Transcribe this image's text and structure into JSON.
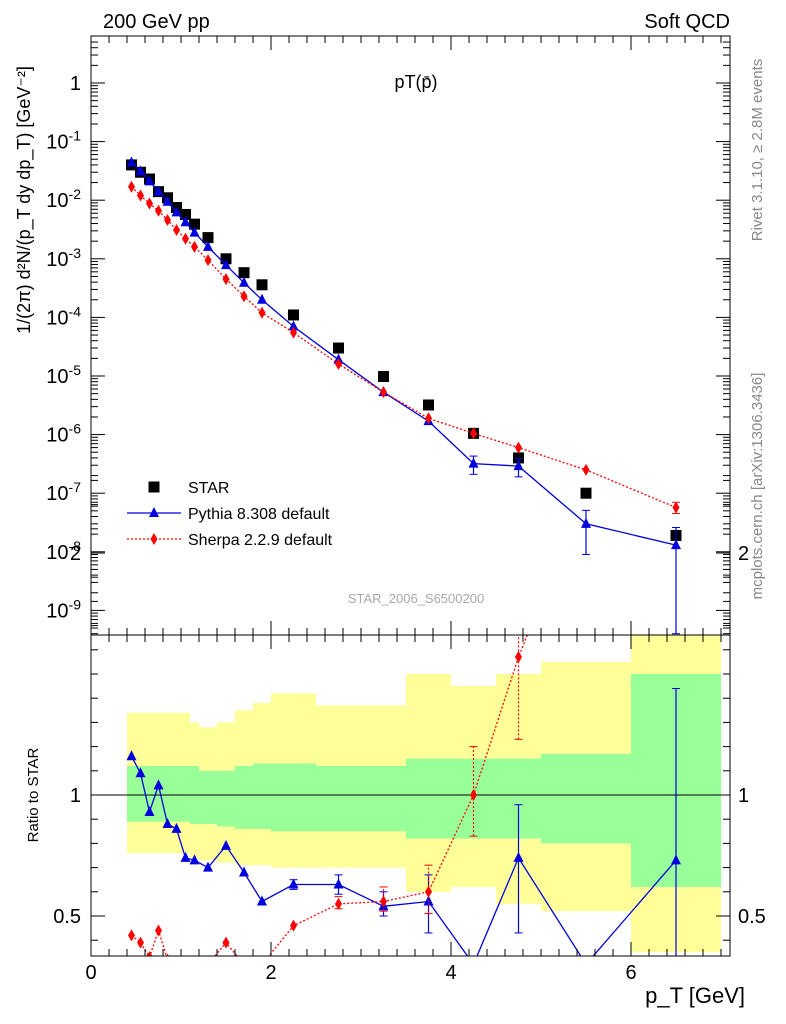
{
  "header": {
    "left": "200 GeV pp",
    "right": "Soft QCD"
  },
  "side_labels": {
    "rivet": "Rivet 3.1.10, ≥ 2.8M events",
    "mcplots": "mcplots.cern.ch [arXiv:1306.3436]"
  },
  "watermark": "STAR_2006_S6500200",
  "chart_data": [
    {
      "type": "scatter",
      "title": "pT(p̄)",
      "ylabel": "1/(2π) d²N/(p_T dy dp_T) [GeV⁻²]",
      "yscale": "log",
      "ylim": [
        4e-10,
        5
      ],
      "xlim": [
        0,
        7.1
      ],
      "yticks": [
        "10^-9",
        "10^-8",
        "10^-7",
        "10^-6",
        "10^-5",
        "10^-4",
        "10^-3",
        "10^-2",
        "10^-1",
        "1"
      ],
      "legend_position": "bottom-left",
      "grid": false,
      "series": [
        {
          "name": "STAR",
          "color": "#000000",
          "marker": "square",
          "line": "none",
          "x": [
            0.45,
            0.55,
            0.65,
            0.75,
            0.85,
            0.95,
            1.05,
            1.15,
            1.3,
            1.5,
            1.7,
            1.9,
            2.25,
            2.75,
            3.25,
            3.75,
            4.25,
            4.75,
            5.5,
            6.5
          ],
          "y": [
            0.04,
            0.03,
            0.023,
            0.014,
            0.011,
            0.0075,
            0.0057,
            0.0039,
            0.0023,
            0.001,
            0.00058,
            0.00036,
            0.00011,
            3e-05,
            9.8e-06,
            3.2e-06,
            1.05e-06,
            4e-07,
            1e-07,
            1.9e-08
          ]
        },
        {
          "name": "Pythia 8.308 default",
          "color": "#0000dd",
          "marker": "triangle",
          "line": "solid",
          "x": [
            0.45,
            0.55,
            0.65,
            0.75,
            0.85,
            0.95,
            1.05,
            1.15,
            1.3,
            1.5,
            1.7,
            1.9,
            2.25,
            2.75,
            3.25,
            3.75,
            4.25,
            4.75,
            5.5,
            6.5
          ],
          "y": [
            0.044,
            0.031,
            0.021,
            0.014,
            0.0094,
            0.0062,
            0.0042,
            0.0028,
            0.0016,
            0.00078,
            0.00039,
            0.0002,
            7e-05,
            1.9e-05,
            5.3e-06,
            1.7e-06,
            3.2e-07,
            2.9e-07,
            3e-08,
            1.3e-08
          ],
          "err_lo": [
            null,
            null,
            null,
            null,
            null,
            null,
            null,
            null,
            null,
            null,
            null,
            null,
            null,
            null,
            null,
            null,
            2.1e-07,
            1.9e-07,
            9e-09,
            4e-10
          ],
          "err_hi": [
            null,
            null,
            null,
            null,
            null,
            null,
            null,
            null,
            null,
            null,
            null,
            null,
            null,
            null,
            null,
            null,
            4.3e-07,
            3.9e-07,
            5.1e-08,
            2.6e-08
          ]
        },
        {
          "name": "Sherpa 2.2.9 default",
          "color": "#ff0000",
          "marker": "diamond",
          "line": "dotted",
          "x": [
            0.45,
            0.55,
            0.65,
            0.75,
            0.85,
            0.95,
            1.05,
            1.15,
            1.3,
            1.5,
            1.7,
            1.9,
            2.25,
            2.75,
            3.25,
            3.75,
            4.25,
            4.75,
            5.5,
            6.5
          ],
          "y": [
            0.017,
            0.012,
            0.0088,
            0.0066,
            0.0046,
            0.0031,
            0.0022,
            0.0016,
            0.00095,
            0.00045,
            0.00023,
            0.00012,
            5.5e-05,
            1.6e-05,
            5.3e-06,
            1.9e-06,
            1.05e-06,
            6e-07,
            2.5e-07,
            5.7e-08
          ],
          "err_lo": [
            null,
            null,
            null,
            null,
            null,
            null,
            null,
            null,
            null,
            null,
            null,
            null,
            null,
            null,
            null,
            null,
            null,
            null,
            null,
            4.5e-08
          ],
          "err_hi": [
            null,
            null,
            null,
            null,
            null,
            null,
            null,
            null,
            null,
            null,
            null,
            null,
            null,
            null,
            null,
            null,
            null,
            null,
            null,
            7e-08
          ]
        }
      ]
    },
    {
      "type": "line",
      "ylabel": "Ratio to STAR",
      "xlabel": "p_T [GeV]",
      "xlim": [
        0,
        7.1
      ],
      "ylim": [
        0.35,
        2.35
      ],
      "xticks": [
        0,
        2,
        4,
        6
      ],
      "yticks": [
        0.5,
        1,
        2
      ],
      "reference_line": 1,
      "bins": [
        0.4,
        0.5,
        0.6,
        0.7,
        0.8,
        0.9,
        1.0,
        1.1,
        1.2,
        1.4,
        1.6,
        1.8,
        2.0,
        2.5,
        3.0,
        3.5,
        4.0,
        4.5,
        5.0,
        6.0,
        7.0
      ],
      "bands": [
        {
          "name": "stat",
          "color": "#99ff99",
          "lo": [
            0.89,
            0.89,
            0.89,
            0.89,
            0.89,
            0.89,
            0.89,
            0.88,
            0.88,
            0.87,
            0.86,
            0.86,
            0.85,
            0.85,
            0.85,
            0.82,
            0.82,
            0.82,
            0.8,
            0.62
          ],
          "hi": [
            1.12,
            1.12,
            1.12,
            1.12,
            1.12,
            1.12,
            1.12,
            1.12,
            1.1,
            1.1,
            1.12,
            1.13,
            1.13,
            1.12,
            1.12,
            1.15,
            1.15,
            1.15,
            1.17,
            1.5
          ]
        },
        {
          "name": "syst",
          "color": "#ffff99",
          "lo": [
            0.76,
            0.76,
            0.76,
            0.76,
            0.76,
            0.76,
            0.76,
            0.74,
            0.73,
            0.72,
            0.71,
            0.71,
            0.7,
            0.7,
            0.7,
            0.6,
            0.62,
            0.55,
            0.52,
            0.35
          ],
          "hi": [
            1.34,
            1.34,
            1.34,
            1.34,
            1.34,
            1.34,
            1.34,
            1.3,
            1.28,
            1.3,
            1.35,
            1.38,
            1.42,
            1.37,
            1.37,
            1.5,
            1.45,
            1.5,
            1.55,
            1.88
          ]
        }
      ],
      "series": [
        {
          "name": "Pythia 8.308 default",
          "color": "#0000dd",
          "marker": "triangle",
          "line": "solid",
          "x": [
            0.45,
            0.55,
            0.65,
            0.75,
            0.85,
            0.95,
            1.05,
            1.15,
            1.3,
            1.5,
            1.7,
            1.9,
            2.25,
            2.75,
            3.25,
            3.75,
            4.25,
            4.75,
            5.5,
            6.5
          ],
          "y": [
            1.16,
            1.09,
            0.93,
            1.04,
            0.88,
            0.86,
            0.74,
            0.73,
            0.7,
            0.79,
            0.68,
            0.56,
            0.63,
            0.63,
            0.54,
            0.56,
            0.3,
            0.74,
            0.3,
            0.73
          ],
          "err_lo": [
            null,
            null,
            null,
            null,
            null,
            null,
            null,
            null,
            null,
            null,
            null,
            null,
            0.61,
            0.59,
            0.5,
            0.43,
            null,
            0.43,
            null,
            0.0
          ],
          "err_hi": [
            null,
            null,
            null,
            null,
            null,
            null,
            null,
            null,
            null,
            null,
            null,
            null,
            0.65,
            0.67,
            0.6,
            0.67,
            null,
            0.96,
            null,
            1.44
          ]
        },
        {
          "name": "Sherpa 2.2.9 default",
          "color": "#ff0000",
          "marker": "diamond",
          "line": "dotted",
          "x": [
            0.45,
            0.55,
            0.65,
            0.75,
            0.85,
            0.95,
            1.05,
            1.15,
            1.3,
            1.5,
            1.7,
            1.9,
            2.25,
            2.75,
            3.25,
            3.75,
            4.25,
            4.75,
            5.5,
            6.5
          ],
          "y": [
            0.42,
            0.39,
            0.33,
            0.44,
            0.32,
            0.3,
            0.3,
            0.3,
            0.3,
            0.39,
            0.3,
            0.3,
            0.46,
            0.55,
            0.56,
            0.6,
            1.0,
            1.57,
            2.27,
            2.8
          ],
          "err_lo": [
            null,
            null,
            null,
            null,
            null,
            null,
            null,
            null,
            null,
            null,
            null,
            null,
            null,
            0.53,
            0.52,
            0.51,
            0.83,
            1.23,
            1.93,
            null
          ],
          "err_hi": [
            null,
            null,
            null,
            null,
            null,
            null,
            null,
            null,
            null,
            null,
            null,
            null,
            null,
            0.58,
            0.62,
            0.71,
            1.2,
            1.8,
            2.5,
            null
          ]
        }
      ]
    }
  ]
}
